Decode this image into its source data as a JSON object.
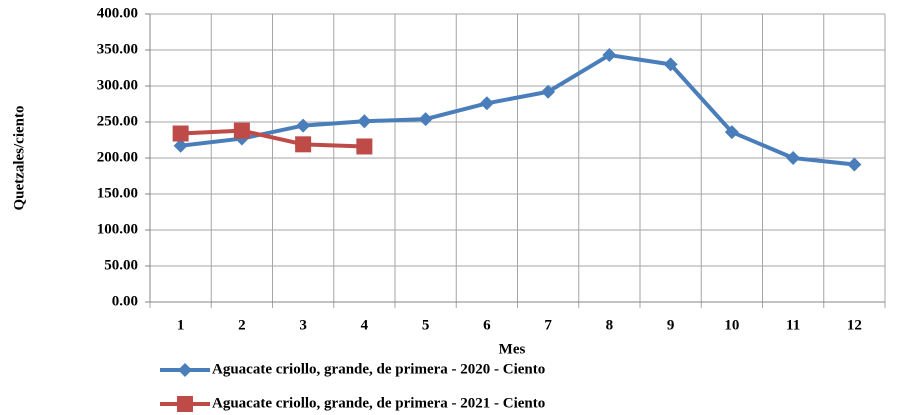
{
  "chart_data": {
    "type": "line",
    "x_label": "Mes",
    "y_label": "Quetzales/ciento",
    "categories": [
      "1",
      "2",
      "3",
      "4",
      "5",
      "6",
      "7",
      "8",
      "9",
      "10",
      "11",
      "12"
    ],
    "series": [
      {
        "name": "Aguacate criollo, grande, de primera - 2020 - Ciento",
        "color": "#4a7ebb",
        "marker": "diamond",
        "values": [
          217,
          227,
          245,
          251,
          254,
          276,
          292,
          343,
          330,
          236,
          200,
          191
        ]
      },
      {
        "name": "Aguacate criollo, grande, de primera - 2021 - Ciento",
        "color": "#be4b48",
        "marker": "square",
        "values": [
          234,
          238,
          219,
          216,
          null,
          null,
          null,
          null,
          null,
          null,
          null,
          null
        ]
      }
    ],
    "ylim": [
      0,
      400
    ],
    "yticks": [
      {
        "value": 0,
        "label": "0.00"
      },
      {
        "value": 50,
        "label": "50.00"
      },
      {
        "value": 100,
        "label": "100.00"
      },
      {
        "value": 150,
        "label": "150.00"
      },
      {
        "value": 200,
        "label": "200.00"
      },
      {
        "value": 250,
        "label": "250.00"
      },
      {
        "value": 300,
        "label": "300.00"
      },
      {
        "value": 350,
        "label": "350.00"
      },
      {
        "value": 400,
        "label": "400.00"
      }
    ],
    "grid": true,
    "legend": "bottom"
  }
}
